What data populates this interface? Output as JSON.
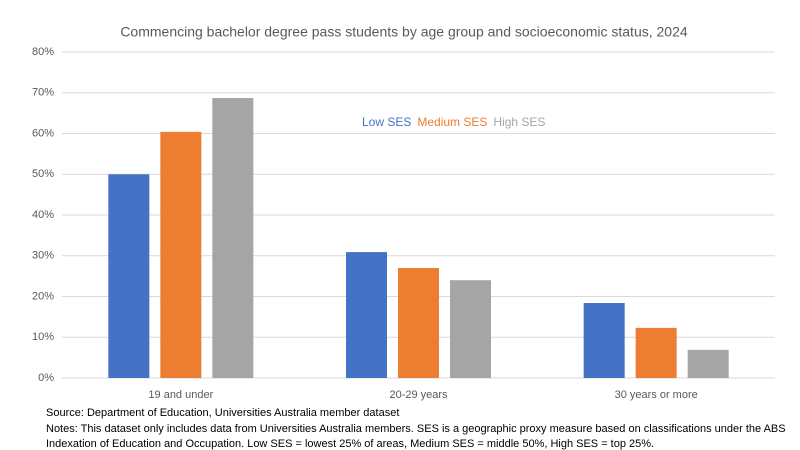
{
  "chart_data": {
    "type": "bar",
    "title": "Commencing bachelor degree pass students by age group and socioeconomic status, 2024",
    "categories": [
      "19 and under",
      "20-29 years",
      "30 years or more"
    ],
    "series": [
      {
        "name": "Low SES",
        "color": "#4472c4",
        "values": [
          50.0,
          30.9,
          18.4
        ]
      },
      {
        "name": "Medium SES",
        "color": "#ed7d31",
        "values": [
          60.4,
          27.0,
          12.3
        ]
      },
      {
        "name": "High SES",
        "color": "#a5a5a5",
        "values": [
          68.7,
          24.0,
          6.9
        ]
      }
    ],
    "ylim": [
      0,
      80
    ],
    "yticks": [
      {
        "value": 0,
        "label": "0%"
      },
      {
        "value": 10,
        "label": "10%"
      },
      {
        "value": 20,
        "label": "20%"
      },
      {
        "value": 30,
        "label": "30%"
      },
      {
        "value": 40,
        "label": "40%"
      },
      {
        "value": 50,
        "label": "50%"
      },
      {
        "value": 60,
        "label": "60%"
      },
      {
        "value": 70,
        "label": "70%"
      },
      {
        "value": 80,
        "label": "80%"
      }
    ],
    "grid": true,
    "source": "Source: Department of Education, Universities Australia member dataset",
    "notes": [
      "Notes: This dataset only includes data from Universities Australia members. SES is a geographic proxy measure based on classifications under the ABS",
      "Indexation of Education and Occupation. Low SES = lowest 25% of areas, Medium SES = middle 50%, High SES = top 25%."
    ]
  }
}
